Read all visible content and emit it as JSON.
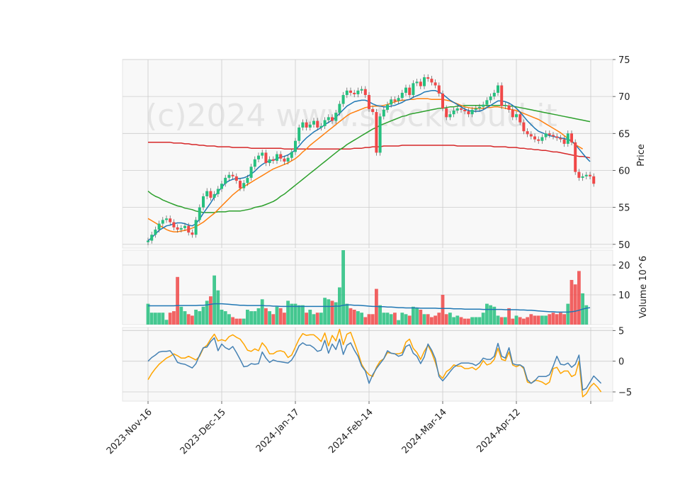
{
  "chart_data": {
    "type": "candlestick",
    "watermark": "(c)2024 www.stockcloud.it",
    "colors": {
      "up": "#26c07f",
      "down": "#f04848",
      "ma_short": "#1f77b4",
      "ma_mid": "#ff7f0e",
      "ma_long": "#2ca02c",
      "ma_xlong": "#d62728",
      "osc_a": "#4682b4",
      "osc_b": "#ffa500",
      "grid": "#cccccc",
      "panel": "#f8f8f8"
    },
    "x_tick_labels": [
      "2023-Nov-16",
      "2023-Dec-15",
      "2024-Jan-17",
      "2024-Feb-14",
      "2024-Mar-14",
      "2024-Apr-12"
    ],
    "x_tick_index": [
      0,
      20,
      40,
      60,
      80,
      100
    ],
    "price": {
      "ylabel": "Price",
      "ylim": [
        49.5,
        75
      ],
      "yticks": [
        50,
        55,
        60,
        65,
        70,
        75
      ],
      "close": [
        50.5,
        51.3,
        52.0,
        52.8,
        53.3,
        53.5,
        53.0,
        52.3,
        52.0,
        52.2,
        52.5,
        51.6,
        51.3,
        53.3,
        55.0,
        56.5,
        57.2,
        56.3,
        56.8,
        57.5,
        58.2,
        59.0,
        59.4,
        59.2,
        58.6,
        57.6,
        58.3,
        59.0,
        60.5,
        61.5,
        62.0,
        62.4,
        61.0,
        61.5,
        61.3,
        62.2,
        61.6,
        61.2,
        61.7,
        62.5,
        64.0,
        65.8,
        66.5,
        65.8,
        66.2,
        66.7,
        65.8,
        66.0,
        66.8,
        67.2,
        66.7,
        67.8,
        69.0,
        70.2,
        70.8,
        70.5,
        70.3,
        70.8,
        71.0,
        70.2,
        68.3,
        67.9,
        62.4,
        67.3,
        68.2,
        68.9,
        69.6,
        69.4,
        69.8,
        70.5,
        71.2,
        70.2,
        71.8,
        72.0,
        71.4,
        72.6,
        72.4,
        71.9,
        71.5,
        70.4,
        68.4,
        67.2,
        67.6,
        68.1,
        68.4,
        68.2,
        68.0,
        67.6,
        68.2,
        68.4,
        68.6,
        68.9,
        69.5,
        70.0,
        70.5,
        71.5,
        68.7,
        68.8,
        68.2,
        67.2,
        67.6,
        66.5,
        65.3,
        64.9,
        64.6,
        64.2,
        64.0,
        64.5,
        65.0,
        64.8,
        64.6,
        64.4,
        64.2,
        63.6,
        65.0,
        63.8,
        59.8,
        59.0,
        59.2,
        59.4,
        59.2,
        58.2
      ],
      "ma_short": [
        50.5,
        50.9,
        51.4,
        51.9,
        52.2,
        52.5,
        52.6,
        52.8,
        52.9,
        52.9,
        52.8,
        52.6,
        52.5,
        52.8,
        53.4,
        54.2,
        54.9,
        55.6,
        56.4,
        57.1,
        57.7,
        58.3,
        58.6,
        58.8,
        58.9,
        58.9,
        59.0,
        59.2,
        59.5,
        59.9,
        60.4,
        60.8,
        61.1,
        61.3,
        61.4,
        61.6,
        61.8,
        61.9,
        62.1,
        62.4,
        62.8,
        63.3,
        63.9,
        64.4,
        64.8,
        65.2,
        65.5,
        65.8,
        66.2,
        66.5,
        66.8,
        67.2,
        67.7,
        68.2,
        68.7,
        69.0,
        69.3,
        69.4,
        69.5,
        69.5,
        69.3,
        69.0,
        68.8,
        68.7,
        68.6,
        68.6,
        68.7,
        68.8,
        69.0,
        69.2,
        69.5,
        69.6,
        69.9,
        70.1,
        70.3,
        70.6,
        70.7,
        70.8,
        70.8,
        70.6,
        70.3,
        69.9,
        69.5,
        69.2,
        68.9,
        68.6,
        68.3,
        68.1,
        68.0,
        68.0,
        68.0,
        68.2,
        68.5,
        68.8,
        69.1,
        69.4,
        69.4,
        69.3,
        69.1,
        68.8,
        68.4,
        67.9,
        67.3,
        66.7,
        66.2,
        65.7,
        65.3,
        65.1,
        64.9,
        64.7,
        64.6,
        64.5,
        64.4,
        64.3,
        64.2,
        64.0,
        63.5,
        62.9,
        62.3,
        61.7,
        61.2
      ],
      "ma_mid": [
        53.5,
        53.2,
        52.9,
        52.6,
        52.3,
        52.0,
        51.8,
        51.7,
        51.7,
        51.8,
        51.9,
        52.0,
        52.2,
        52.4,
        52.7,
        53.0,
        53.4,
        53.8,
        54.2,
        54.7,
        55.2,
        55.7,
        56.2,
        56.7,
        57.1,
        57.5,
        57.8,
        58.1,
        58.4,
        58.7,
        59.0,
        59.3,
        59.6,
        59.9,
        60.2,
        60.4,
        60.6,
        60.8,
        61.0,
        61.3,
        61.6,
        62.0,
        62.5,
        62.9,
        63.4,
        63.8,
        64.2,
        64.6,
        65.0,
        65.4,
        65.8,
        66.2,
        66.6,
        67.0,
        67.4,
        67.7,
        67.9,
        68.1,
        68.3,
        68.5,
        68.6,
        68.7,
        68.7,
        68.7,
        68.8,
        68.9,
        69.1,
        69.3,
        69.4,
        69.5,
        69.5,
        69.6,
        69.6,
        69.7,
        69.7,
        69.7,
        69.7,
        69.6,
        69.6,
        69.6,
        69.6,
        69.5,
        69.4,
        69.2,
        69.0,
        68.8,
        68.6,
        68.5,
        68.4,
        68.4,
        68.4,
        68.4,
        68.5,
        68.5,
        68.6,
        68.6,
        68.5,
        68.4,
        68.3,
        68.2,
        68.1,
        67.9,
        67.7,
        67.5,
        67.3,
        67.1,
        66.9,
        66.6,
        66.3,
        66.0,
        65.7,
        65.4,
        65.1,
        64.7,
        64.3,
        63.9,
        63.5,
        63.2,
        62.9
      ],
      "ma_long": [
        57.2,
        56.8,
        56.5,
        56.3,
        56.0,
        55.8,
        55.6,
        55.4,
        55.2,
        55.1,
        54.9,
        54.8,
        54.7,
        54.5,
        54.4,
        54.3,
        54.3,
        54.3,
        54.3,
        54.4,
        54.4,
        54.4,
        54.5,
        54.5,
        54.5,
        54.5,
        54.6,
        54.7,
        54.8,
        55.0,
        55.1,
        55.2,
        55.4,
        55.6,
        55.8,
        56.1,
        56.5,
        56.8,
        57.2,
        57.6,
        58.0,
        58.4,
        58.8,
        59.2,
        59.6,
        60.0,
        60.4,
        60.8,
        61.2,
        61.6,
        62.0,
        62.4,
        62.8,
        63.1,
        63.5,
        63.8,
        64.1,
        64.4,
        64.7,
        65.0,
        65.3,
        65.6,
        65.8,
        66.1,
        66.3,
        66.5,
        66.7,
        66.9,
        67.1,
        67.3,
        67.4,
        67.6,
        67.7,
        67.8,
        67.9,
        68.0,
        68.1,
        68.2,
        68.3,
        68.4,
        68.4,
        68.5,
        68.6,
        68.6,
        68.7,
        68.7,
        68.8,
        68.8,
        68.8,
        68.8,
        68.8,
        68.8,
        68.8,
        68.8,
        68.8,
        68.8,
        68.8,
        68.8,
        68.7,
        68.7,
        68.6,
        68.5,
        68.4,
        68.3,
        68.2,
        68.1,
        68.0,
        67.9,
        67.8,
        67.7,
        67.6,
        67.5,
        67.4,
        67.3,
        67.2,
        67.1,
        67.0,
        66.9,
        66.8,
        66.7,
        66.6
      ],
      "ma_xlong": [
        63.8,
        63.8,
        63.8,
        63.8,
        63.8,
        63.8,
        63.8,
        63.7,
        63.7,
        63.7,
        63.6,
        63.6,
        63.5,
        63.5,
        63.4,
        63.4,
        63.3,
        63.3,
        63.3,
        63.2,
        63.2,
        63.2,
        63.2,
        63.1,
        63.1,
        63.1,
        63.1,
        63.1,
        63.0,
        63.0,
        63.0,
        63.0,
        63.0,
        63.0,
        63.0,
        63.0,
        63.0,
        62.9,
        62.9,
        62.9,
        62.9,
        62.9,
        62.9,
        62.9,
        62.9,
        62.9,
        62.9,
        62.9,
        62.9,
        62.9,
        62.9,
        62.9,
        62.9,
        62.9,
        62.9,
        62.9,
        63.0,
        63.0,
        63.0,
        63.1,
        63.1,
        63.2,
        63.2,
        63.2,
        63.3,
        63.3,
        63.3,
        63.3,
        63.3,
        63.4,
        63.4,
        63.4,
        63.4,
        63.4,
        63.4,
        63.4,
        63.4,
        63.4,
        63.4,
        63.4,
        63.4,
        63.4,
        63.4,
        63.4,
        63.3,
        63.3,
        63.3,
        63.3,
        63.3,
        63.3,
        63.3,
        63.3,
        63.3,
        63.3,
        63.2,
        63.2,
        63.2,
        63.2,
        63.1,
        63.1,
        63.1,
        63.0,
        63.0,
        62.9,
        62.9,
        62.8,
        62.8,
        62.7,
        62.7,
        62.6,
        62.5,
        62.5,
        62.4,
        62.3,
        62.2,
        62.1,
        62.0,
        61.9,
        61.9,
        61.8,
        61.7
      ]
    },
    "volume": {
      "ylabel": "Volume  10^6",
      "ylim": [
        0,
        25
      ],
      "yticks": [
        10,
        20
      ],
      "values": [
        7,
        4,
        4,
        4,
        4,
        1.6,
        4,
        4.5,
        16,
        6,
        4.5,
        3.5,
        3,
        5,
        4.5,
        6,
        8,
        9.5,
        16.5,
        11.5,
        5,
        4.5,
        3.5,
        2.5,
        2,
        2,
        2,
        5,
        4.5,
        4.5,
        5.5,
        8.5,
        5.5,
        4.5,
        3.5,
        6,
        5.5,
        4,
        8,
        7,
        7,
        6.5,
        6.5,
        4,
        5,
        3.5,
        4,
        4,
        9,
        8.5,
        8,
        7.5,
        12.5,
        25,
        7,
        5.5,
        5,
        4.5,
        4,
        2.5,
        3.5,
        3.5,
        12,
        6.5,
        4,
        4,
        3.5,
        4,
        1.5,
        4,
        3.5,
        3,
        6,
        5.5,
        5,
        3.5,
        3.5,
        2.5,
        3,
        4,
        10,
        3.5,
        4,
        2.5,
        3,
        2.5,
        2,
        2,
        2.5,
        2.5,
        2.5,
        4,
        7,
        6.5,
        6,
        3,
        2.5,
        2.5,
        5.5,
        2,
        3,
        2.5,
        2,
        2.5,
        3.5,
        3,
        3,
        3,
        3,
        3.5,
        4,
        3.5,
        4,
        3.5,
        7,
        15,
        13.5,
        18,
        10.5,
        6.5
      ],
      "avg": [
        6.3,
        6.3,
        6.3,
        6.3,
        6.3,
        6.3,
        6.3,
        6.3,
        6.4,
        6.4,
        6.4,
        6.4,
        6.4,
        6.4,
        6.5,
        6.5,
        6.6,
        6.8,
        7.0,
        7.0,
        7.0,
        6.9,
        6.8,
        6.7,
        6.6,
        6.5,
        6.5,
        6.4,
        6.4,
        6.4,
        6.4,
        6.4,
        6.3,
        6.3,
        6.2,
        6.2,
        6.1,
        6.1,
        6.1,
        6.1,
        6.1,
        6.1,
        6.1,
        6.1,
        6.1,
        6.1,
        6.1,
        6.1,
        6.1,
        6.1,
        6.1,
        6.2,
        6.2,
        6.5,
        6.6,
        6.6,
        6.5,
        6.5,
        6.4,
        6.3,
        6.2,
        6.1,
        6.1,
        6.0,
        6.0,
        5.9,
        5.9,
        5.8,
        5.7,
        5.7,
        5.6,
        5.6,
        5.6,
        5.6,
        5.5,
        5.5,
        5.5,
        5.5,
        5.5,
        5.4,
        5.4,
        5.4,
        5.4,
        5.3,
        5.3,
        5.3,
        5.2,
        5.2,
        5.2,
        5.2,
        5.2,
        5.1,
        5.1,
        5.1,
        5.1,
        5.1,
        5.1,
        5.0,
        5.0,
        5.0,
        5.0,
        4.9,
        4.9,
        4.8,
        4.8,
        4.7,
        4.6,
        4.5,
        4.4,
        4.3,
        4.3,
        4.2,
        4.2,
        4.2,
        4.2,
        4.3,
        4.5,
        4.8,
        5.2,
        5.5,
        5.7
      ]
    },
    "oscillator": {
      "ylim": [
        -6.5,
        5.5
      ],
      "yticks": [
        -5,
        0,
        5
      ],
      "line_a": [
        0,
        0.6,
        1.0,
        1.5,
        1.6,
        1.6,
        1.7,
        0.9,
        -0.2,
        -0.4,
        -0.5,
        -0.8,
        -1.1,
        -0.4,
        1.0,
        2.2,
        2.3,
        3.2,
        3.8,
        1.7,
        2.8,
        2.2,
        1.9,
        2.4,
        1.4,
        0.3,
        -0.9,
        -0.8,
        -0.4,
        -0.5,
        -0.4,
        1.5,
        0.5,
        -0.2,
        0.2,
        0.0,
        -0.1,
        -0.2,
        -0.3,
        0.2,
        1.2,
        2.5,
        3.0,
        2.6,
        2.6,
        2.2,
        1.6,
        1.8,
        3.4,
        1.3,
        2.8,
        1.9,
        3.6,
        1.1,
        2.6,
        3.0,
        1.8,
        0.8,
        -0.8,
        -1.6,
        -3.6,
        -2.2,
        -1.2,
        -0.4,
        0.4,
        1.7,
        1.3,
        1.2,
        0.8,
        1.0,
        2.4,
        2.7,
        1.3,
        0.8,
        -0.4,
        0.7,
        2.8,
        1.8,
        0.4,
        -2.5,
        -3.2,
        -2.5,
        -1.7,
        -1.0,
        -0.6,
        -0.3,
        -0.3,
        -0.3,
        -0.4,
        -0.7,
        -0.3,
        0.5,
        0.3,
        0.3,
        0.8,
        2.9,
        0.8,
        0.5,
        2.2,
        -0.4,
        -0.6,
        -0.6,
        -1.0,
        -3.0,
        -3.6,
        -3.2,
        -2.5,
        -2.5,
        -2.5,
        -2.2,
        -0.8,
        0.8,
        -0.5,
        -0.6,
        -0.3,
        -1.0,
        -0.5,
        1.0,
        -4.7,
        -4.4,
        -3.4,
        -2.4,
        -3.0,
        -3.6
      ],
      "line_b": [
        -3,
        -2.0,
        -1.2,
        -0.5,
        0.0,
        0.5,
        0.8,
        1.2,
        0.9,
        0.5,
        0.5,
        0.8,
        0.5,
        0.2,
        0.8,
        2.1,
        2.6,
        3.6,
        4.4,
        3.3,
        3.5,
        3.3,
        4.0,
        4.3,
        3.9,
        3.6,
        2.8,
        1.8,
        1.6,
        2.0,
        1.7,
        3.0,
        2.3,
        1.2,
        1.2,
        1.6,
        1.7,
        1.5,
        0.6,
        1.0,
        2.3,
        3.6,
        4.5,
        4.2,
        4.3,
        4.3,
        3.8,
        3.2,
        4.6,
        2.5,
        4.2,
        3.3,
        5.2,
        2.7,
        4.4,
        4.7,
        3.1,
        1.4,
        -0.5,
        -1.5,
        -2.2,
        -2.5,
        -1.0,
        0.0,
        0.4,
        1.4,
        1.3,
        1.2,
        1.2,
        1.4,
        3.1,
        3.6,
        2.1,
        1.4,
        0.3,
        1.6,
        2.6,
        1.4,
        -0.2,
        -2.2,
        -2.8,
        -1.7,
        -1.3,
        -0.6,
        -0.8,
        -0.8,
        -1.2,
        -1.2,
        -1.0,
        -1.4,
        -0.9,
        0.1,
        -0.6,
        -0.4,
        0.3,
        2.1,
        0.3,
        0.1,
        1.5,
        -0.6,
        -0.9,
        -0.6,
        -1.2,
        -3.4,
        -3.6,
        -3.1,
        -3.2,
        -3.4,
        -3.8,
        -3.4,
        -1.2,
        -1.0,
        -2.0,
        -1.6,
        -1.6,
        -2.5,
        -2.2,
        0.0,
        -5.8,
        -5.3,
        -4.2,
        -3.6,
        -4.2,
        -5.0
      ]
    }
  }
}
